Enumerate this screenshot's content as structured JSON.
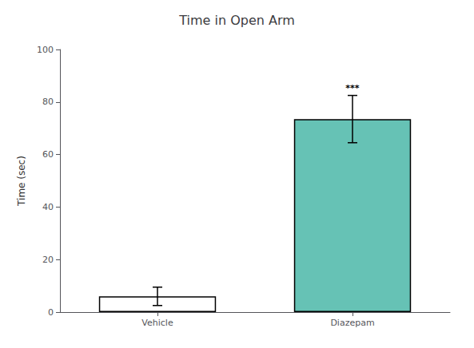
{
  "chart_data": {
    "type": "bar",
    "title": "Time in Open Arm",
    "categories": [
      "Vehicle",
      "Diazepam"
    ],
    "values": [
      6.0,
      73.5
    ],
    "errors": [
      3.5,
      9.0
    ],
    "colors": [
      "#ffffff",
      "#66c2b5"
    ],
    "ylabel": "Time (sec)",
    "ylim": [
      0,
      100
    ],
    "yticks": [
      0,
      20,
      40,
      60,
      80,
      100
    ],
    "annotations": [
      {
        "category": "Diazepam",
        "text": "***"
      }
    ],
    "grid": false
  }
}
